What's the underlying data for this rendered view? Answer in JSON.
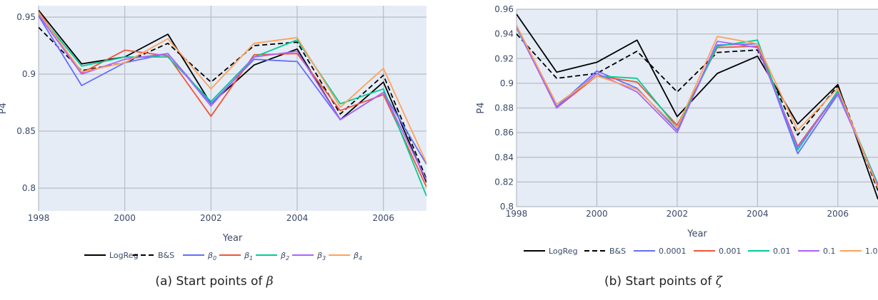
{
  "chart_data": [
    {
      "type": "line",
      "caption_prefix": "(a) Start points of ",
      "caption_symbol": "β",
      "xlabel": "Year",
      "ylabel": "P4",
      "xlim": [
        1998,
        2007
      ],
      "ylim": [
        0.78,
        0.96
      ],
      "xticks": [
        1998,
        2000,
        2002,
        2004,
        2006
      ],
      "yticks": [
        0.8,
        0.85,
        0.9,
        0.95
      ],
      "ytick_labels": [
        "0.8",
        "0.85",
        "0.9",
        "0.95"
      ],
      "grid": true,
      "legend_position": "bottom",
      "x": [
        1998,
        1999,
        2000,
        2001,
        2002,
        2003,
        2004,
        2005,
        2006,
        2007
      ],
      "series": [
        {
          "name": "LogReg",
          "label_base": "",
          "label_sub": "",
          "color": "#000000",
          "dash": "solid",
          "values": [
            0.956,
            0.909,
            0.915,
            0.935,
            0.874,
            0.908,
            0.922,
            0.86,
            0.893,
            0.805
          ]
        },
        {
          "name": "B&S",
          "label_base": "",
          "label_sub": "",
          "color": "#000000",
          "dash": "dash",
          "values": [
            0.941,
            0.903,
            0.91,
            0.927,
            0.893,
            0.925,
            0.928,
            0.865,
            0.899,
            0.808
          ]
        },
        {
          "name": "",
          "label_base": "β",
          "label_sub": "0",
          "color": "#636efa",
          "dash": "solid",
          "values": [
            0.951,
            0.89,
            0.91,
            0.918,
            0.874,
            0.913,
            0.911,
            0.86,
            0.884,
            0.821
          ]
        },
        {
          "name": "",
          "label_base": "β",
          "label_sub": "1",
          "color": "#ef553b",
          "dash": "solid",
          "values": [
            0.955,
            0.901,
            0.921,
            0.916,
            0.863,
            0.917,
            0.918,
            0.868,
            0.882,
            0.801
          ]
        },
        {
          "name": "",
          "label_base": "β",
          "label_sub": "2",
          "color": "#00cc96",
          "dash": "solid",
          "values": [
            0.953,
            0.907,
            0.915,
            0.915,
            0.876,
            0.915,
            0.93,
            0.874,
            0.887,
            0.793
          ]
        },
        {
          "name": "",
          "label_base": "β",
          "label_sub": "3",
          "color": "#ab63fa",
          "dash": "solid",
          "values": [
            0.952,
            0.9,
            0.913,
            0.918,
            0.872,
            0.915,
            0.92,
            0.86,
            0.884,
            0.807
          ]
        },
        {
          "name": "",
          "label_base": "β",
          "label_sub": "4",
          "color": "#ffa15a",
          "dash": "solid",
          "values": [
            0.954,
            0.902,
            0.91,
            0.931,
            0.887,
            0.927,
            0.932,
            0.871,
            0.905,
            0.822
          ]
        }
      ]
    },
    {
      "type": "line",
      "caption_prefix": "(b) Start points of ",
      "caption_symbol": "ζ",
      "xlabel": "Year",
      "ylabel": "P4",
      "xlim": [
        1998,
        2007
      ],
      "ylim": [
        0.8,
        0.96
      ],
      "xticks": [
        1998,
        2000,
        2002,
        2004,
        2006
      ],
      "yticks": [
        0.8,
        0.82,
        0.84,
        0.86,
        0.88,
        0.9,
        0.92,
        0.94,
        0.96
      ],
      "ytick_labels": [
        "0.8",
        "0.82",
        "0.84",
        "0.86",
        "0.88",
        "0.9",
        "0.92",
        "0.94",
        "0.96"
      ],
      "grid": true,
      "legend_position": "bottom",
      "x": [
        1998,
        1999,
        2000,
        2001,
        2002,
        2003,
        2004,
        2005,
        2006,
        2007
      ],
      "series": [
        {
          "name": "LogReg",
          "label_base": "",
          "label_sub": "",
          "color": "#000000",
          "dash": "solid",
          "values": [
            0.956,
            0.909,
            0.917,
            0.935,
            0.873,
            0.908,
            0.922,
            0.867,
            0.899,
            0.806
          ]
        },
        {
          "name": "B&S",
          "label_base": "",
          "label_sub": "",
          "color": "#000000",
          "dash": "dash",
          "values": [
            0.94,
            0.904,
            0.908,
            0.926,
            0.893,
            0.925,
            0.927,
            0.858,
            0.898,
            0.813
          ]
        },
        {
          "name": "0.0001",
          "label_base": "",
          "label_sub": "",
          "color": "#636efa",
          "dash": "solid",
          "values": [
            0.945,
            0.881,
            0.91,
            0.896,
            0.862,
            0.931,
            0.932,
            0.843,
            0.891,
            0.818
          ]
        },
        {
          "name": "0.001",
          "label_base": "",
          "label_sub": "",
          "color": "#ef553b",
          "dash": "solid",
          "values": [
            0.946,
            0.88,
            0.906,
            0.901,
            0.866,
            0.929,
            0.93,
            0.849,
            0.893,
            0.816
          ]
        },
        {
          "name": "0.01",
          "label_base": "",
          "label_sub": "",
          "color": "#00cc96",
          "dash": "solid",
          "values": [
            0.945,
            0.883,
            0.906,
            0.904,
            0.864,
            0.93,
            0.935,
            0.846,
            0.894,
            0.818
          ]
        },
        {
          "name": "0.1",
          "label_base": "",
          "label_sub": "",
          "color": "#ab63fa",
          "dash": "solid",
          "values": [
            0.946,
            0.88,
            0.908,
            0.893,
            0.86,
            0.934,
            0.929,
            0.848,
            0.892,
            0.817
          ]
        },
        {
          "name": "1.0",
          "label_base": "",
          "label_sub": "",
          "color": "#ffa15a",
          "dash": "solid",
          "values": [
            0.947,
            0.883,
            0.906,
            0.895,
            0.864,
            0.938,
            0.932,
            0.862,
            0.896,
            0.815
          ]
        }
      ]
    }
  ]
}
